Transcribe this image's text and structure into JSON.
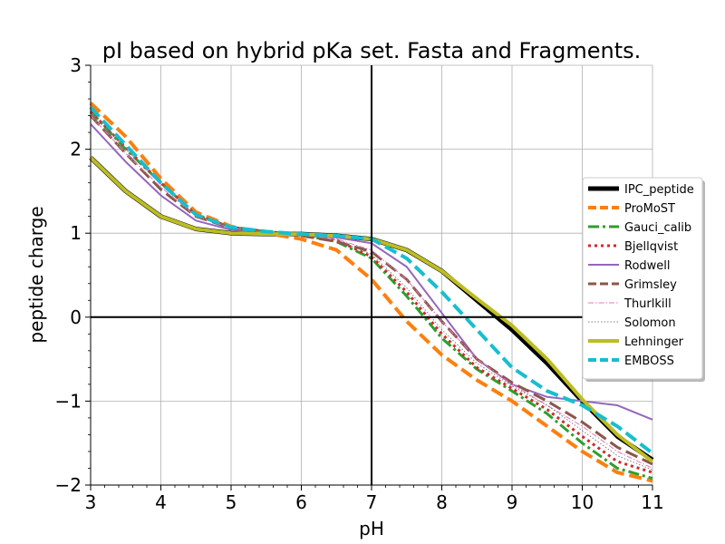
{
  "chart_data": {
    "type": "line",
    "title": "pI based on hybrid pKa set. Fasta and Fragments.",
    "xlabel": "pH",
    "ylabel": "peptide charge",
    "xlim": [
      3,
      11
    ],
    "ylim": [
      -2,
      3
    ],
    "xticks": [
      "3",
      "4",
      "5",
      "6",
      "7",
      "8",
      "9",
      "10",
      "11"
    ],
    "yticks": [
      "−2",
      "−1",
      "0",
      "1",
      "2",
      "3"
    ],
    "grid": true,
    "reference_lines": {
      "x": 7,
      "y": 0
    },
    "legend_placement": "right",
    "series": [
      {
        "name": "IPC_peptide",
        "color": "#000000",
        "style": "solid",
        "width": 5,
        "x": [
          3,
          3.5,
          4,
          4.5,
          5,
          5.5,
          6,
          6.5,
          7,
          7.5,
          8,
          8.5,
          9,
          9.5,
          10,
          10.5,
          11
        ],
        "y": [
          1.9,
          1.5,
          1.2,
          1.05,
          1.0,
          0.99,
          0.99,
          0.97,
          0.93,
          0.8,
          0.55,
          0.2,
          -0.15,
          -0.55,
          -1.0,
          -1.42,
          -1.7
        ]
      },
      {
        "name": "ProMoST",
        "color": "#ff7f0e",
        "style": "dashed",
        "width": 4,
        "x": [
          3,
          3.5,
          4,
          4.5,
          5,
          5.5,
          6,
          6.5,
          7,
          7.5,
          8,
          8.5,
          9,
          9.5,
          10,
          10.5,
          11
        ],
        "y": [
          2.55,
          2.15,
          1.65,
          1.25,
          1.08,
          1.0,
          0.93,
          0.8,
          0.45,
          -0.05,
          -0.45,
          -0.75,
          -1.0,
          -1.3,
          -1.6,
          -1.85,
          -1.95
        ]
      },
      {
        "name": "Gauci_calib",
        "color": "#2ca02c",
        "style": "dashdot",
        "width": 3,
        "x": [
          3,
          3.5,
          4,
          4.5,
          5,
          5.5,
          6,
          6.5,
          7,
          7.5,
          8,
          8.5,
          9,
          9.5,
          10,
          10.5,
          11
        ],
        "y": [
          2.45,
          2.0,
          1.6,
          1.22,
          1.07,
          1.02,
          0.98,
          0.9,
          0.7,
          0.25,
          -0.25,
          -0.62,
          -0.88,
          -1.15,
          -1.5,
          -1.8,
          -1.92
        ]
      },
      {
        "name": "Bjellqvist",
        "color": "#d62728",
        "style": "dotted",
        "width": 3,
        "x": [
          3,
          3.5,
          4,
          4.5,
          5,
          5.5,
          6,
          6.5,
          7,
          7.5,
          8,
          8.5,
          9,
          9.5,
          10,
          10.5,
          11
        ],
        "y": [
          2.45,
          2.02,
          1.6,
          1.22,
          1.07,
          1.02,
          0.98,
          0.92,
          0.72,
          0.3,
          -0.2,
          -0.6,
          -0.85,
          -1.1,
          -1.42,
          -1.72,
          -1.85
        ]
      },
      {
        "name": "Rodwell",
        "color": "#9467bd",
        "style": "solid",
        "width": 2,
        "x": [
          3,
          3.5,
          4,
          4.5,
          5,
          5.5,
          6,
          6.5,
          7,
          7.5,
          8,
          8.5,
          9,
          9.5,
          10,
          10.5,
          11
        ],
        "y": [
          2.3,
          1.85,
          1.45,
          1.15,
          1.04,
          1.0,
          0.98,
          0.95,
          0.88,
          0.6,
          0.05,
          -0.5,
          -0.8,
          -0.95,
          -1.0,
          -1.05,
          -1.22
        ]
      },
      {
        "name": "Grimsley",
        "color": "#8c564b",
        "style": "dashed",
        "width": 3,
        "x": [
          3,
          3.5,
          4,
          4.5,
          5,
          5.5,
          6,
          6.5,
          7,
          7.5,
          8,
          8.5,
          9,
          9.5,
          10,
          10.5,
          11
        ],
        "y": [
          2.4,
          1.95,
          1.52,
          1.2,
          1.06,
          1.0,
          0.97,
          0.9,
          0.78,
          0.45,
          -0.05,
          -0.5,
          -0.78,
          -1.0,
          -1.25,
          -1.55,
          -1.75
        ]
      },
      {
        "name": "Thurlkill",
        "color": "#e377c2",
        "style": "dashdot",
        "width": 1,
        "x": [
          3,
          3.5,
          4,
          4.5,
          5,
          5.5,
          6,
          6.5,
          7,
          7.5,
          8,
          8.5,
          9,
          9.5,
          10,
          10.5,
          11
        ],
        "y": [
          2.4,
          1.95,
          1.55,
          1.2,
          1.06,
          1.01,
          0.98,
          0.93,
          0.8,
          0.45,
          -0.05,
          -0.5,
          -0.8,
          -1.05,
          -1.3,
          -1.6,
          -1.8
        ]
      },
      {
        "name": "Solomon",
        "color": "#7f7f7f",
        "style": "dotted",
        "width": 1,
        "x": [
          3,
          3.5,
          4,
          4.5,
          5,
          5.5,
          6,
          6.5,
          7,
          7.5,
          8,
          8.5,
          9,
          9.5,
          10,
          10.5,
          11
        ],
        "y": [
          2.45,
          2.0,
          1.58,
          1.22,
          1.07,
          1.01,
          0.98,
          0.92,
          0.75,
          0.35,
          -0.15,
          -0.55,
          -0.82,
          -1.05,
          -1.35,
          -1.65,
          -1.82
        ]
      },
      {
        "name": "Lehninger",
        "color": "#bcbd22",
        "style": "solid",
        "width": 4,
        "x": [
          3,
          3.5,
          4,
          4.5,
          5,
          5.5,
          6,
          6.5,
          7,
          7.5,
          8,
          8.5,
          9,
          9.5,
          10,
          10.5,
          11
        ],
        "y": [
          1.9,
          1.5,
          1.2,
          1.05,
          1.0,
          0.99,
          0.99,
          0.97,
          0.93,
          0.8,
          0.55,
          0.22,
          -0.1,
          -0.5,
          -0.98,
          -1.4,
          -1.72
        ]
      },
      {
        "name": "EMBOSS",
        "color": "#17becf",
        "style": "dashed",
        "width": 4,
        "x": [
          3,
          3.5,
          4,
          4.5,
          5,
          5.5,
          6,
          6.5,
          7,
          7.5,
          8,
          8.5,
          9,
          9.5,
          10,
          10.5,
          11
        ],
        "y": [
          2.5,
          2.05,
          1.6,
          1.22,
          1.07,
          1.02,
          0.99,
          0.97,
          0.93,
          0.7,
          0.3,
          -0.15,
          -0.6,
          -0.88,
          -1.05,
          -1.3,
          -1.62
        ]
      }
    ]
  }
}
